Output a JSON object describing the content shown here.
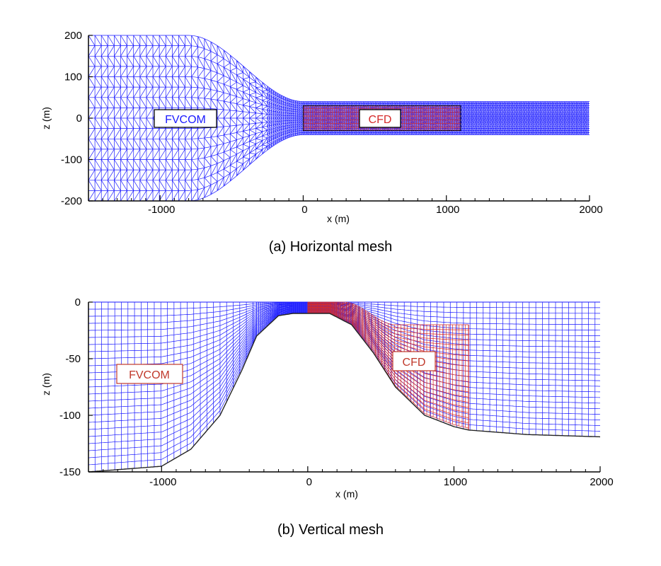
{
  "colors": {
    "mesh": "#1a1aff",
    "cfd": "#d42a2a",
    "axis": "#000000",
    "bottom": "#222222"
  },
  "panel_a": {
    "caption": "(a) Horizontal mesh",
    "xlabel": "x (m)",
    "ylabel": "z (m)",
    "x_ticks": [
      "-1000",
      "0",
      "1000",
      "2000"
    ],
    "y_ticks": [
      "200",
      "100",
      "0",
      "-100",
      "-200"
    ],
    "label_fvcom": "FVCOM",
    "label_cfd": "CFD"
  },
  "panel_b": {
    "caption": "(b) Vertical mesh",
    "xlabel": "x (m)",
    "ylabel": "z (m)",
    "x_ticks": [
      "-1000",
      "0",
      "1000",
      "2000"
    ],
    "y_ticks": [
      "0",
      "-50",
      "-100",
      "-150"
    ],
    "label_fvcom": "FVCOM",
    "label_cfd": "CFD"
  },
  "chart_data": [
    {
      "type": "mesh",
      "xlim": [
        -1500,
        2000
      ],
      "ylim": [
        -200,
        200
      ],
      "channel_half_width": [
        200,
        40
      ],
      "transition_x": [
        -800,
        0
      ],
      "cfd_region_x": [
        0,
        1100
      ],
      "cfd_region_z": [
        -30,
        30
      ]
    },
    {
      "type": "mesh",
      "xlim": [
        -1500,
        2000
      ],
      "ylim": [
        -150,
        0
      ],
      "bottom_profile": [
        [
          -1500,
          -150
        ],
        [
          -1000,
          -145
        ],
        [
          -800,
          -130
        ],
        [
          -600,
          -100
        ],
        [
          -450,
          -60
        ],
        [
          -350,
          -30
        ],
        [
          -200,
          -12
        ],
        [
          -100,
          -10
        ],
        [
          0,
          -10
        ],
        [
          150,
          -10
        ],
        [
          300,
          -20
        ],
        [
          450,
          -45
        ],
        [
          600,
          -75
        ],
        [
          800,
          -100
        ],
        [
          1000,
          -110
        ],
        [
          1100,
          -113
        ],
        [
          1500,
          -117
        ],
        [
          2000,
          -119
        ]
      ],
      "cfd_region_x": [
        0,
        1100
      ],
      "cfd_surface_z": -20
    }
  ]
}
